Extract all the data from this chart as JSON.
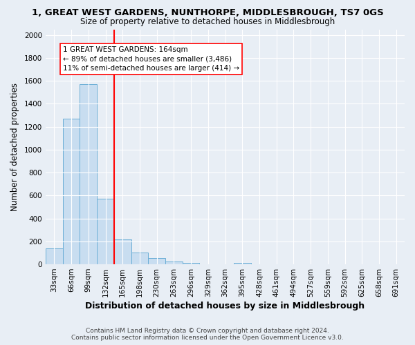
{
  "title": "1, GREAT WEST GARDENS, NUNTHORPE, MIDDLESBROUGH, TS7 0GS",
  "subtitle": "Size of property relative to detached houses in Middlesbrough",
  "xlabel": "Distribution of detached houses by size in Middlesbrough",
  "ylabel": "Number of detached properties",
  "bar_labels": [
    "33sqm",
    "66sqm",
    "99sqm",
    "132sqm",
    "165sqm",
    "198sqm",
    "230sqm",
    "263sqm",
    "296sqm",
    "329sqm",
    "362sqm",
    "395sqm",
    "428sqm",
    "461sqm",
    "494sqm",
    "527sqm",
    "559sqm",
    "592sqm",
    "625sqm",
    "658sqm",
    "691sqm"
  ],
  "bar_values": [
    140,
    1270,
    1570,
    570,
    220,
    100,
    55,
    25,
    15,
    0,
    0,
    15,
    0,
    0,
    0,
    0,
    0,
    0,
    0,
    0,
    0
  ],
  "bar_color": "#c8ddf0",
  "bar_edge_color": "#6aaed6",
  "red_line_index": 4,
  "annotation_text": "1 GREAT WEST GARDENS: 164sqm\n← 89% of detached houses are smaller (3,486)\n11% of semi-detached houses are larger (414) →",
  "ylim": [
    0,
    2050
  ],
  "yticks": [
    0,
    200,
    400,
    600,
    800,
    1000,
    1200,
    1400,
    1600,
    1800,
    2000
  ],
  "footer_line1": "Contains HM Land Registry data © Crown copyright and database right 2024.",
  "footer_line2": "Contains public sector information licensed under the Open Government Licence v3.0.",
  "bg_color": "#e8eef5",
  "plot_bg_color": "#e8eef5",
  "grid_color": "#ffffff",
  "title_fontsize": 9.5,
  "subtitle_fontsize": 8.5,
  "xlabel_fontsize": 9,
  "ylabel_fontsize": 8.5,
  "tick_fontsize": 7.5,
  "footer_fontsize": 6.5,
  "ann_fontsize": 7.5
}
